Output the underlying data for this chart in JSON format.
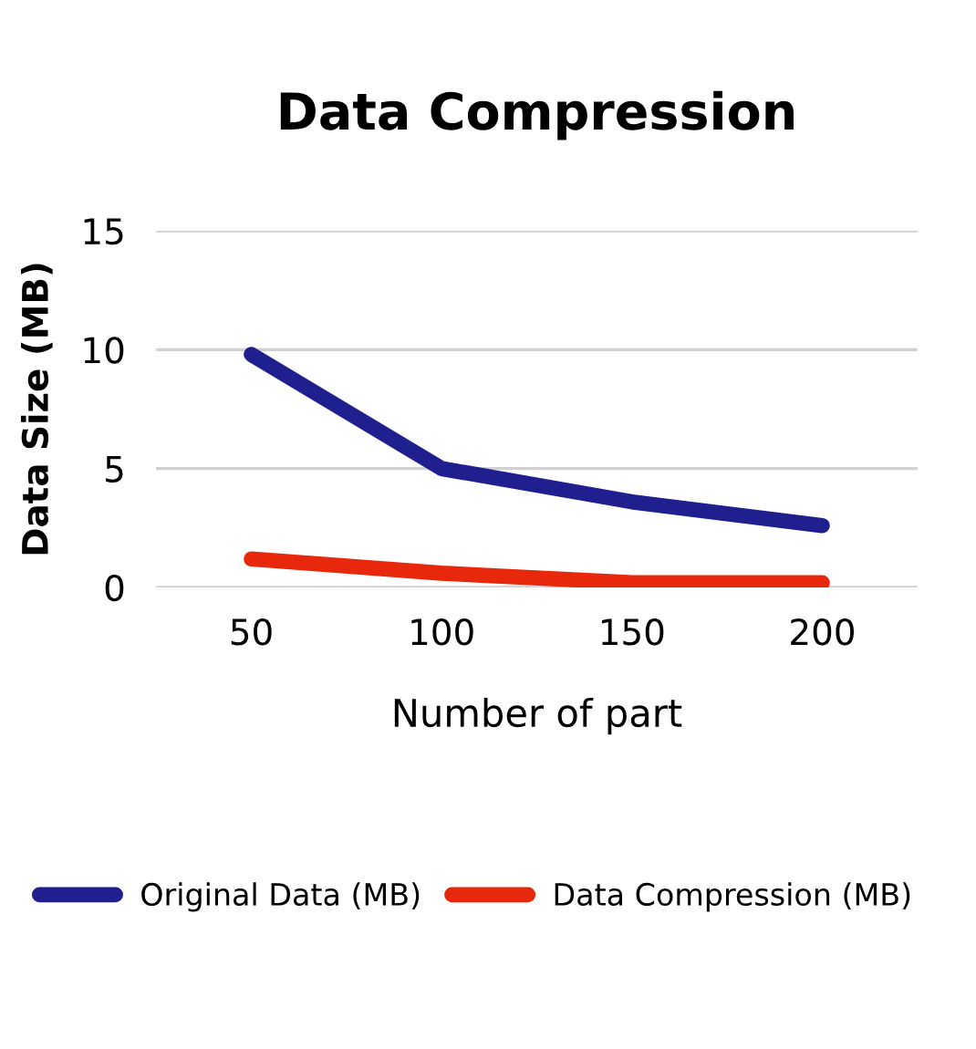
{
  "chart_data": {
    "type": "line",
    "title": "Data Compression",
    "xlabel": "Number of part",
    "ylabel": "Data Size (MB)",
    "categories": [
      "50",
      "100",
      "150",
      "200"
    ],
    "series": [
      {
        "name": "Original Data (MB)",
        "color": "#1f1f8f",
        "values": [
          9.8,
          5.0,
          3.6,
          2.6
        ]
      },
      {
        "name": "Data Compression (MB)",
        "color": "#e8280c",
        "values": [
          1.2,
          0.6,
          0.2,
          0.2
        ]
      }
    ],
    "ylim": [
      0,
      15
    ],
    "yticks": [
      0,
      5,
      10,
      15
    ],
    "grid": "y",
    "legend": "bottom",
    "marker": "none",
    "line_style": "solid"
  }
}
